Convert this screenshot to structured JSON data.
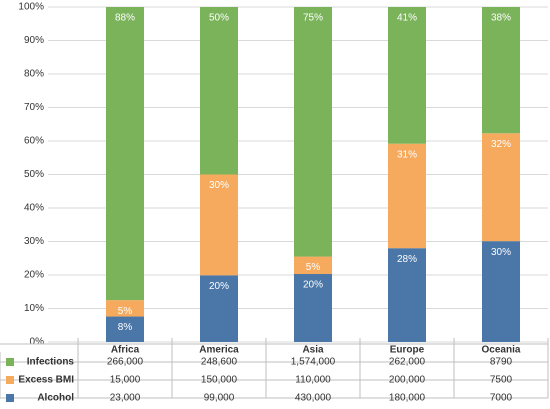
{
  "chart_data": {
    "type": "stacked_bar",
    "categories": [
      "Africa",
      "America",
      "Asia",
      "Europe",
      "Oceania"
    ],
    "series": [
      {
        "name": "Alcohol",
        "color": "#4a76a8",
        "values": [
          7.6,
          19.9,
          20.3,
          28.0,
          30.1
        ],
        "value_labels": [
          "8%",
          "20%",
          "20%",
          "28%",
          "30%"
        ],
        "table_values": [
          "23,000",
          "99,000",
          "430,000",
          "180,000",
          "7000"
        ]
      },
      {
        "name": "Excess BMI",
        "color": "#f5aa5e",
        "values": [
          4.9,
          30.1,
          5.2,
          31.2,
          32.2
        ],
        "value_labels": [
          "5%",
          "30%",
          "5%",
          "31%",
          "32%"
        ],
        "table_values": [
          "15,000",
          "150,000",
          "110,000",
          "200,000",
          "7500"
        ]
      },
      {
        "name": "Infections",
        "color": "#7ab35a",
        "values": [
          87.5,
          50.0,
          74.5,
          40.8,
          37.7
        ],
        "value_labels": [
          "88%",
          "50%",
          "75%",
          "41%",
          "38%"
        ],
        "table_values": [
          "266,000",
          "248,600",
          "1,574,000",
          "262,000",
          "8790"
        ]
      }
    ],
    "ylim": [
      0,
      100
    ],
    "yticks": [
      {
        "value": 0,
        "label": "0%"
      },
      {
        "value": 10,
        "label": "10%"
      },
      {
        "value": 20,
        "label": "20%"
      },
      {
        "value": 30,
        "label": "30%"
      },
      {
        "value": 40,
        "label": "40%"
      },
      {
        "value": 50,
        "label": "50%"
      },
      {
        "value": 60,
        "label": "60%"
      },
      {
        "value": 70,
        "label": "70%"
      },
      {
        "value": 80,
        "label": "80%"
      },
      {
        "value": 90,
        "label": "90%"
      },
      {
        "value": 100,
        "label": "100%"
      }
    ],
    "grid": true
  }
}
